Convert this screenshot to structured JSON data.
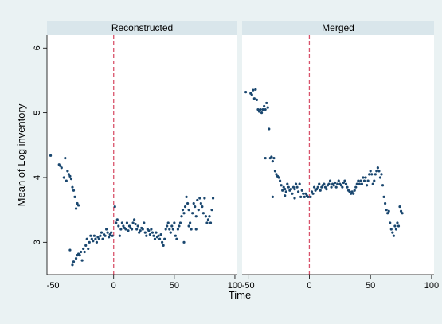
{
  "chart_data": {
    "type": "scatter",
    "xlabel": "Time",
    "ylabel": "Mean of Log inventory",
    "xlim": [
      -55,
      102
    ],
    "ylim": [
      2.5,
      6.2
    ],
    "xticks": [
      "-50",
      "0",
      "50",
      "100"
    ],
    "yticks": [
      "3",
      "4",
      "5",
      "6"
    ],
    "reference_line_x": 0,
    "colors": {
      "points": "#1a476f",
      "refline": "#d9536b",
      "strip": "#d9e6eb",
      "background": "#eaf2f3",
      "plot": "#ffffff"
    },
    "panels": [
      {
        "title": "Reconstructed",
        "points": [
          [
            -52,
            4.34
          ],
          [
            -45,
            4.2
          ],
          [
            -44,
            4.18
          ],
          [
            -43,
            4.15
          ],
          [
            -41,
            4.0
          ],
          [
            -40,
            4.3
          ],
          [
            -39,
            3.95
          ],
          [
            -38,
            4.1
          ],
          [
            -37,
            4.05
          ],
          [
            -36,
            4.02
          ],
          [
            -35,
            3.98
          ],
          [
            -34,
            3.85
          ],
          [
            -33,
            3.8
          ],
          [
            -32,
            3.7
          ],
          [
            -31,
            3.52
          ],
          [
            -30,
            3.6
          ],
          [
            -29,
            3.57
          ],
          [
            -36,
            2.88
          ],
          [
            -34,
            2.65
          ],
          [
            -33,
            2.7
          ],
          [
            -31,
            2.75
          ],
          [
            -30,
            2.8
          ],
          [
            -29,
            2.82
          ],
          [
            -28,
            2.8
          ],
          [
            -27,
            2.85
          ],
          [
            -26,
            2.72
          ],
          [
            -25,
            2.9
          ],
          [
            -24,
            2.85
          ],
          [
            -23,
            2.95
          ],
          [
            -22,
            3.05
          ],
          [
            -21,
            2.9
          ],
          [
            -20,
            3.0
          ],
          [
            -19,
            3.1
          ],
          [
            -18,
            3.05
          ],
          [
            -17,
            3.02
          ],
          [
            -16,
            3.1
          ],
          [
            -15,
            3.05
          ],
          [
            -14,
            3.0
          ],
          [
            -13,
            3.08
          ],
          [
            -12,
            3.05
          ],
          [
            -11,
            3.1
          ],
          [
            -10,
            3.15
          ],
          [
            -9,
            3.05
          ],
          [
            -8,
            3.12
          ],
          [
            -7,
            3.1
          ],
          [
            -6,
            3.2
          ],
          [
            -5,
            3.15
          ],
          [
            -4,
            3.08
          ],
          [
            -3,
            3.12
          ],
          [
            -2,
            3.15
          ],
          [
            -1,
            3.1
          ],
          [
            1,
            3.55
          ],
          [
            2,
            3.3
          ],
          [
            3,
            3.35
          ],
          [
            4,
            3.25
          ],
          [
            5,
            3.1
          ],
          [
            6,
            3.2
          ],
          [
            7,
            3.3
          ],
          [
            8,
            3.25
          ],
          [
            9,
            3.22
          ],
          [
            10,
            3.2
          ],
          [
            11,
            3.3
          ],
          [
            12,
            3.18
          ],
          [
            13,
            3.25
          ],
          [
            14,
            3.22
          ],
          [
            15,
            3.2
          ],
          [
            16,
            3.3
          ],
          [
            17,
            3.35
          ],
          [
            18,
            3.28
          ],
          [
            19,
            3.2
          ],
          [
            20,
            3.25
          ],
          [
            21,
            3.15
          ],
          [
            22,
            3.18
          ],
          [
            23,
            3.22
          ],
          [
            24,
            3.2
          ],
          [
            25,
            3.3
          ],
          [
            26,
            3.15
          ],
          [
            27,
            3.1
          ],
          [
            28,
            3.2
          ],
          [
            29,
            3.18
          ],
          [
            30,
            3.12
          ],
          [
            31,
            3.2
          ],
          [
            32,
            3.15
          ],
          [
            33,
            3.1
          ],
          [
            34,
            3.05
          ],
          [
            35,
            3.15
          ],
          [
            36,
            3.08
          ],
          [
            37,
            3.1
          ],
          [
            38,
            3.05
          ],
          [
            39,
            3.12
          ],
          [
            40,
            3.0
          ],
          [
            41,
            2.95
          ],
          [
            42,
            3.05
          ],
          [
            43,
            3.2
          ],
          [
            44,
            3.25
          ],
          [
            45,
            3.3
          ],
          [
            46,
            3.2
          ],
          [
            47,
            3.15
          ],
          [
            48,
            3.25
          ],
          [
            49,
            3.2
          ],
          [
            50,
            3.3
          ],
          [
            51,
            3.1
          ],
          [
            52,
            3.05
          ],
          [
            53,
            3.2
          ],
          [
            54,
            3.25
          ],
          [
            55,
            3.3
          ],
          [
            56,
            3.4
          ],
          [
            57,
            3.5
          ],
          [
            58,
            3.45
          ],
          [
            59,
            3.55
          ],
          [
            60,
            3.7
          ],
          [
            61,
            3.6
          ],
          [
            62,
            3.5
          ],
          [
            63,
            3.3
          ],
          [
            64,
            3.2
          ],
          [
            65,
            3.45
          ],
          [
            66,
            3.6
          ],
          [
            67,
            3.55
          ],
          [
            68,
            3.4
          ],
          [
            69,
            3.65
          ],
          [
            70,
            3.5
          ],
          [
            71,
            3.68
          ],
          [
            72,
            3.6
          ],
          [
            73,
            3.55
          ],
          [
            74,
            3.45
          ],
          [
            75,
            3.68
          ],
          [
            76,
            3.4
          ],
          [
            77,
            3.3
          ],
          [
            78,
            3.35
          ],
          [
            79,
            3.4
          ],
          [
            80,
            3.3
          ],
          [
            81,
            3.5
          ],
          [
            82,
            3.68
          ],
          [
            58,
            3.0
          ],
          [
            62,
            3.25
          ],
          [
            68,
            3.2
          ]
        ]
      },
      {
        "title": "Merged",
        "points": [
          [
            -52,
            5.32
          ],
          [
            -48,
            5.3
          ],
          [
            -47,
            5.28
          ],
          [
            -46,
            5.35
          ],
          [
            -45,
            5.22
          ],
          [
            -44,
            5.36
          ],
          [
            -43,
            5.2
          ],
          [
            -42,
            5.05
          ],
          [
            -41,
            5.02
          ],
          [
            -40,
            5.05
          ],
          [
            -39,
            5.0
          ],
          [
            -38,
            5.05
          ],
          [
            -37,
            5.1
          ],
          [
            -36,
            5.05
          ],
          [
            -35,
            5.15
          ],
          [
            -34,
            5.08
          ],
          [
            -33,
            4.75
          ],
          [
            -32,
            4.3
          ],
          [
            -31,
            4.32
          ],
          [
            -30,
            4.25
          ],
          [
            -29,
            4.3
          ],
          [
            -28,
            4.1
          ],
          [
            -27,
            4.05
          ],
          [
            -26,
            4.02
          ],
          [
            -25,
            4.0
          ],
          [
            -24,
            3.95
          ],
          [
            -23,
            3.88
          ],
          [
            -22,
            3.8
          ],
          [
            -21,
            3.85
          ],
          [
            -20,
            3.82
          ],
          [
            -19,
            3.78
          ],
          [
            -18,
            3.9
          ],
          [
            -17,
            3.85
          ],
          [
            -16,
            3.8
          ],
          [
            -15,
            3.82
          ],
          [
            -14,
            3.75
          ],
          [
            -13,
            3.85
          ],
          [
            -12,
            3.82
          ],
          [
            -11,
            3.9
          ],
          [
            -10,
            3.85
          ],
          [
            -9,
            3.78
          ],
          [
            -8,
            3.9
          ],
          [
            -7,
            3.7
          ],
          [
            -6,
            3.8
          ],
          [
            -5,
            3.75
          ],
          [
            -4,
            3.7
          ],
          [
            -3,
            3.75
          ],
          [
            -2,
            3.72
          ],
          [
            -1,
            3.7
          ],
          [
            -36,
            4.3
          ],
          [
            -30,
            3.7
          ],
          [
            -20,
            3.72
          ],
          [
            -12,
            3.68
          ],
          [
            1,
            3.7
          ],
          [
            2,
            3.78
          ],
          [
            3,
            3.75
          ],
          [
            4,
            3.85
          ],
          [
            5,
            3.8
          ],
          [
            6,
            3.82
          ],
          [
            7,
            3.85
          ],
          [
            8,
            3.9
          ],
          [
            9,
            3.8
          ],
          [
            10,
            3.85
          ],
          [
            11,
            3.88
          ],
          [
            12,
            3.9
          ],
          [
            13,
            3.85
          ],
          [
            14,
            3.82
          ],
          [
            15,
            3.88
          ],
          [
            16,
            3.9
          ],
          [
            17,
            3.95
          ],
          [
            18,
            3.85
          ],
          [
            19,
            3.9
          ],
          [
            20,
            3.88
          ],
          [
            21,
            3.92
          ],
          [
            22,
            3.85
          ],
          [
            23,
            3.9
          ],
          [
            24,
            3.95
          ],
          [
            25,
            3.9
          ],
          [
            26,
            3.88
          ],
          [
            27,
            3.85
          ],
          [
            28,
            3.92
          ],
          [
            29,
            3.95
          ],
          [
            30,
            3.9
          ],
          [
            31,
            3.85
          ],
          [
            32,
            3.8
          ],
          [
            33,
            3.78
          ],
          [
            34,
            3.75
          ],
          [
            35,
            3.78
          ],
          [
            36,
            3.75
          ],
          [
            37,
            3.8
          ],
          [
            38,
            3.85
          ],
          [
            39,
            3.9
          ],
          [
            40,
            3.95
          ],
          [
            41,
            3.9
          ],
          [
            42,
            3.95
          ],
          [
            43,
            3.9
          ],
          [
            44,
            4.0
          ],
          [
            45,
            3.95
          ],
          [
            46,
            4.0
          ],
          [
            47,
            3.88
          ],
          [
            48,
            3.95
          ],
          [
            49,
            4.05
          ],
          [
            50,
            4.1
          ],
          [
            51,
            4.05
          ],
          [
            52,
            3.9
          ],
          [
            53,
            3.95
          ],
          [
            54,
            4.05
          ],
          [
            55,
            4.1
          ],
          [
            56,
            4.15
          ],
          [
            57,
            4.1
          ],
          [
            58,
            4.0
          ],
          [
            59,
            4.05
          ],
          [
            60,
            3.88
          ],
          [
            61,
            3.7
          ],
          [
            62,
            3.6
          ],
          [
            63,
            3.5
          ],
          [
            64,
            3.45
          ],
          [
            65,
            3.48
          ],
          [
            66,
            3.3
          ],
          [
            67,
            3.2
          ],
          [
            68,
            3.15
          ],
          [
            69,
            3.1
          ],
          [
            70,
            3.25
          ],
          [
            71,
            3.2
          ],
          [
            72,
            3.3
          ],
          [
            73,
            3.25
          ],
          [
            74,
            3.55
          ],
          [
            75,
            3.48
          ],
          [
            76,
            3.45
          ]
        ]
      }
    ]
  }
}
